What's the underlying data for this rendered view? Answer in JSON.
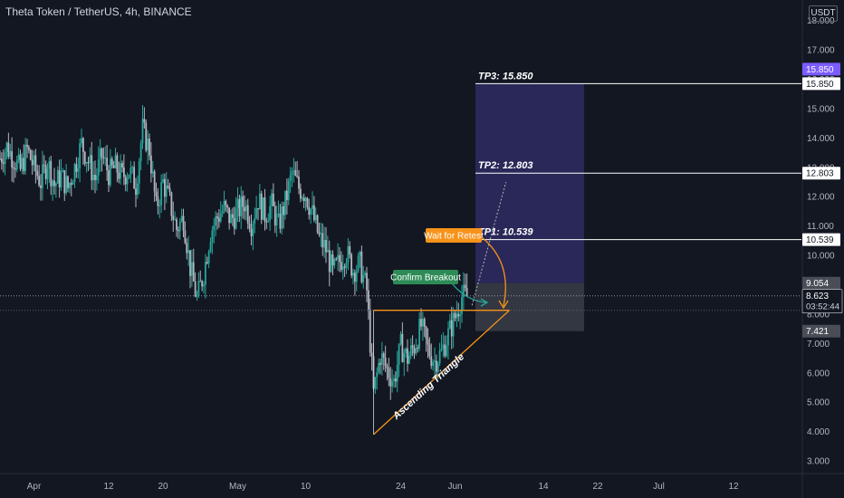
{
  "header": {
    "title": "Theta Token / TetherUS, 4h, BINANCE",
    "currency": "USDT"
  },
  "chart_data": {
    "type": "candlestick",
    "symbol": "Theta Token / TetherUS",
    "interval": "4h",
    "exchange": "BINANCE",
    "currency": "USDT",
    "y_ticks": [
      "3.000",
      "4.000",
      "5.000",
      "6.000",
      "7.000",
      "8.000",
      "9.000",
      "10.000",
      "11.000",
      "12.000",
      "13.000",
      "14.000",
      "15.000",
      "16.000",
      "17.000",
      "18.000"
    ],
    "ylim": [
      2.6,
      18.7
    ],
    "x_ticks": [
      {
        "label": "Apr",
        "x": 0
      },
      {
        "label": "12",
        "x": 11
      },
      {
        "label": "20",
        "x": 19
      },
      {
        "label": "May",
        "x": 30
      },
      {
        "label": "10",
        "x": 40
      },
      {
        "label": "24",
        "x": 54
      },
      {
        "label": "Jun",
        "x": 62
      },
      {
        "label": "14",
        "x": 75
      },
      {
        "label": "22",
        "x": 83
      },
      {
        "label": "Jul",
        "x": 92
      },
      {
        "label": "12",
        "x": 103
      }
    ],
    "xlim": [
      -5,
      113
    ],
    "price_series": [
      {
        "x": -5,
        "c": 13.3
      },
      {
        "x": -4,
        "c": 13.7
      },
      {
        "x": -3,
        "c": 13.3
      },
      {
        "x": -2,
        "c": 12.9
      },
      {
        "x": -1,
        "c": 13.6
      },
      {
        "x": 0,
        "c": 13.0
      },
      {
        "x": 1,
        "c": 12.5
      },
      {
        "x": 2,
        "c": 13.2
      },
      {
        "x": 3,
        "c": 12.4
      },
      {
        "x": 4,
        "c": 12.7
      },
      {
        "x": 5,
        "c": 12.3
      },
      {
        "x": 6,
        "c": 13.0
      },
      {
        "x": 7,
        "c": 13.8
      },
      {
        "x": 8,
        "c": 13.2
      },
      {
        "x": 9,
        "c": 12.6
      },
      {
        "x": 10,
        "c": 13.4
      },
      {
        "x": 11,
        "c": 12.8
      },
      {
        "x": 12,
        "c": 13.0
      },
      {
        "x": 13,
        "c": 12.7
      },
      {
        "x": 14,
        "c": 12.9
      },
      {
        "x": 15,
        "c": 12.4
      },
      {
        "x": 16,
        "c": 14.3
      },
      {
        "x": 17,
        "c": 13.6
      },
      {
        "x": 18,
        "c": 11.6
      },
      {
        "x": 19,
        "c": 12.5
      },
      {
        "x": 20,
        "c": 11.8
      },
      {
        "x": 21,
        "c": 10.9
      },
      {
        "x": 22,
        "c": 11.3
      },
      {
        "x": 23,
        "c": 9.6
      },
      {
        "x": 24,
        "c": 8.5
      },
      {
        "x": 25,
        "c": 9.4
      },
      {
        "x": 26,
        "c": 10.8
      },
      {
        "x": 27,
        "c": 11.3
      },
      {
        "x": 28,
        "c": 11.6
      },
      {
        "x": 29,
        "c": 11.2
      },
      {
        "x": 30,
        "c": 11.5
      },
      {
        "x": 31,
        "c": 11.8
      },
      {
        "x": 32,
        "c": 11.1
      },
      {
        "x": 33,
        "c": 11.9
      },
      {
        "x": 34,
        "c": 11.4
      },
      {
        "x": 35,
        "c": 11.7
      },
      {
        "x": 36,
        "c": 11.0
      },
      {
        "x": 37,
        "c": 11.8
      },
      {
        "x": 38,
        "c": 12.8
      },
      {
        "x": 39,
        "c": 12.3
      },
      {
        "x": 40,
        "c": 12.1
      },
      {
        "x": 41,
        "c": 11.4
      },
      {
        "x": 42,
        "c": 10.6
      },
      {
        "x": 43,
        "c": 10.2
      },
      {
        "x": 44,
        "c": 9.4
      },
      {
        "x": 45,
        "c": 9.8
      },
      {
        "x": 46,
        "c": 10.1
      },
      {
        "x": 47,
        "c": 9.5
      },
      {
        "x": 48,
        "c": 9.7
      },
      {
        "x": 49,
        "c": 8.8
      },
      {
        "x": 50,
        "c": 5.3
      },
      {
        "x": 51,
        "c": 6.6
      },
      {
        "x": 52,
        "c": 6.1
      },
      {
        "x": 53,
        "c": 5.7
      },
      {
        "x": 54,
        "c": 6.9
      },
      {
        "x": 55,
        "c": 6.5
      },
      {
        "x": 56,
        "c": 6.9
      },
      {
        "x": 57,
        "c": 7.6
      },
      {
        "x": 58,
        "c": 6.8
      },
      {
        "x": 59,
        "c": 6.4
      },
      {
        "x": 60,
        "c": 6.7
      },
      {
        "x": 61,
        "c": 7.3
      },
      {
        "x": 62,
        "c": 7.9
      },
      {
        "x": 63,
        "c": 8.6
      },
      {
        "x": 64,
        "c": 8.623
      }
    ],
    "price_range": {
      "min": 7.421,
      "max": 15.85
    },
    "annotations": {
      "trend_label": "Ascending Triangle",
      "breakout_label": "Confirm Breakout",
      "retest_label": "Wait for Retest",
      "current_price": "8.623",
      "countdown": "03:52:44",
      "triangle_resistance": 8.13,
      "triangle_support_start": {
        "x": 50,
        "y": 3.9
      },
      "triangle_end": {
        "x": 70,
        "y": 8.13
      },
      "trade_x_range": [
        65,
        81
      ],
      "entry": 9.054,
      "stop": 7.421,
      "targets": [
        {
          "label": "TP1: 10.539",
          "value": 10.539,
          "tag": "10.539"
        },
        {
          "label": "TP2: 12.803",
          "value": 12.803,
          "tag": "12.803"
        },
        {
          "label": "TP3: 15.850",
          "value": 15.85,
          "tag": "15.850"
        }
      ],
      "entry_tag": "9.054",
      "stop_tag": "7.421",
      "highlight_tag": "15.850"
    },
    "colors": {
      "up": "#26a69a",
      "down": "#ef5350",
      "neutral": "#b2b5be",
      "triangle": "#f7931a",
      "profit_zone": "#2f2b62",
      "risk_zone": "#3a3d48",
      "breakout_label": "#2e8b57",
      "retest_label": "#f7931a",
      "highlight": "#7b5cff"
    }
  }
}
